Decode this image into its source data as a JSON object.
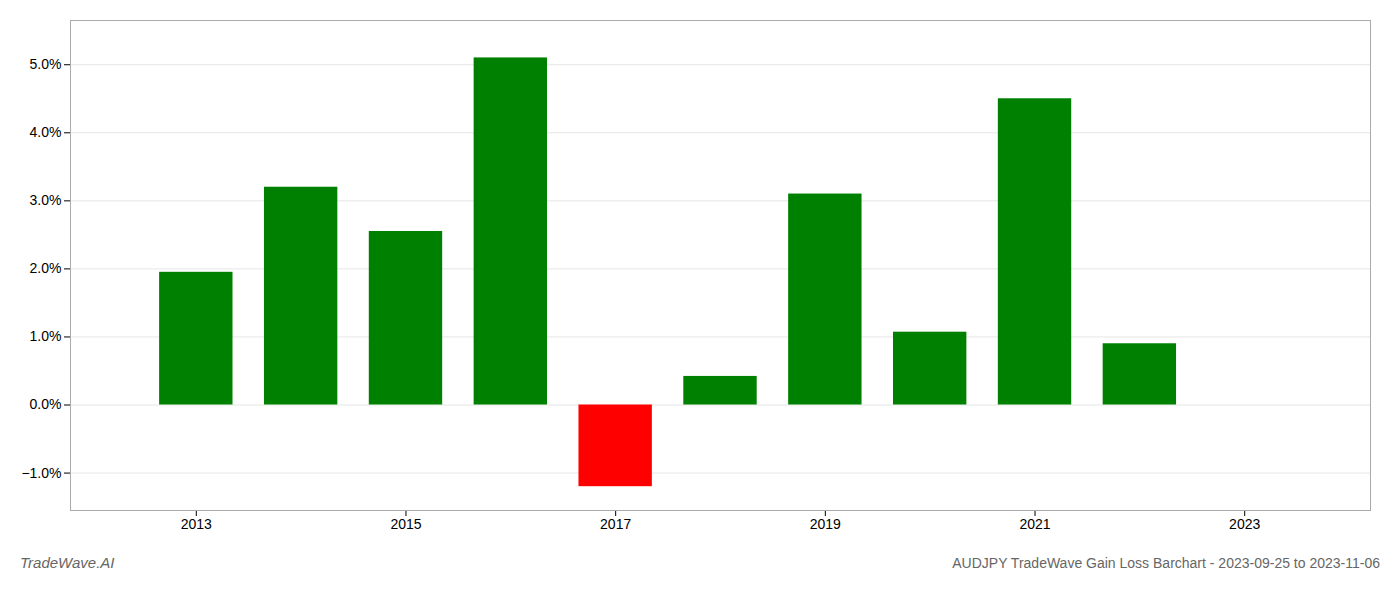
{
  "chart_data": {
    "type": "bar",
    "title": "AUDJPY TradeWave Gain Loss Barchart - 2023-09-25 to 2023-11-06",
    "annotations": [
      "TradeWave.AI"
    ],
    "x": [
      2013,
      2014,
      2015,
      2016,
      2017,
      2018,
      2019,
      2020,
      2021,
      2022
    ],
    "values": [
      1.95,
      3.2,
      2.55,
      5.1,
      -1.2,
      0.42,
      3.1,
      1.07,
      4.5,
      0.9
    ],
    "colors": [
      "#008000",
      "#008000",
      "#008000",
      "#008000",
      "#ff0000",
      "#008000",
      "#008000",
      "#008000",
      "#008000",
      "#008000"
    ],
    "xlim": [
      2011.8,
      2024.2
    ],
    "xticks": [
      2013,
      2015,
      2017,
      2019,
      2021,
      2023
    ],
    "ylim": [
      -1.55,
      5.65
    ],
    "yticks": [
      {
        "value": -1.0,
        "label": "−1.0%"
      },
      {
        "value": 0.0,
        "label": "0.0%"
      },
      {
        "value": 1.0,
        "label": "1.0%"
      },
      {
        "value": 2.0,
        "label": "2.0%"
      },
      {
        "value": 3.0,
        "label": "3.0%"
      },
      {
        "value": 4.0,
        "label": "4.0%"
      },
      {
        "value": 5.0,
        "label": "5.0%"
      }
    ],
    "grid": true
  }
}
